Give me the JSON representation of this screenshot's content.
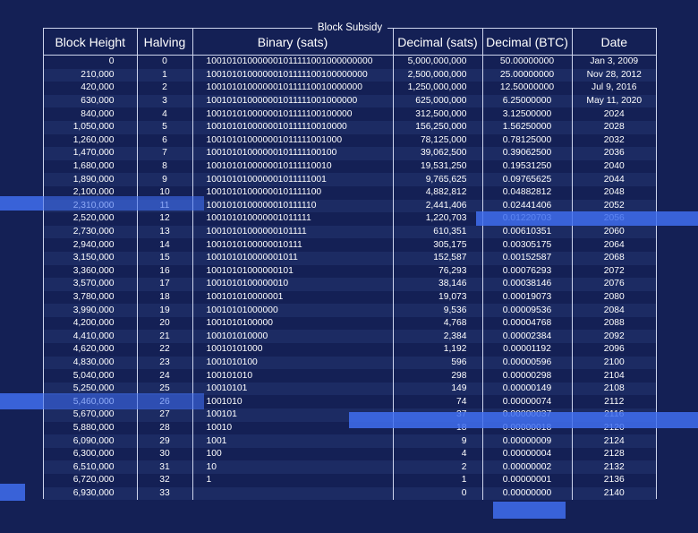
{
  "caption": "Block Subsidy",
  "columns": [
    "Block Height",
    "Halving",
    "Binary (sats)",
    "Decimal (sats)",
    "Decimal (BTC)",
    "Date"
  ],
  "rows": [
    [
      "0",
      "0",
      "100101010000001011111001000000000",
      "5,000,000,000",
      "50.00000000",
      "Jan 3, 2009"
    ],
    [
      "210,000",
      "1",
      "10010101000000101111100100000000",
      "2,500,000,000",
      "25.00000000",
      "Nov 28, 2012"
    ],
    [
      "420,000",
      "2",
      "1001010100000010111110010000000",
      "1,250,000,000",
      "12.50000000",
      "Jul 9, 2016"
    ],
    [
      "630,000",
      "3",
      "100101010000001011111001000000",
      "625,000,000",
      "6.25000000",
      "May 11, 2020"
    ],
    [
      "840,000",
      "4",
      "10010101000000101111100100000",
      "312,500,000",
      "3.12500000",
      "2024"
    ],
    [
      "1,050,000",
      "5",
      "1001010100000010111110010000",
      "156,250,000",
      "1.56250000",
      "2028"
    ],
    [
      "1,260,000",
      "6",
      "100101010000001011111001000",
      "78,125,000",
      "0.78125000",
      "2032"
    ],
    [
      "1,470,000",
      "7",
      "10010101000000101111100100",
      "39,062,500",
      "0.39062500",
      "2036"
    ],
    [
      "1,680,000",
      "8",
      "1001010100000010111110010",
      "19,531,250",
      "0.19531250",
      "2040"
    ],
    [
      "1,890,000",
      "9",
      "100101010000001011111001",
      "9,765,625",
      "0.09765625",
      "2044"
    ],
    [
      "2,100,000",
      "10",
      "10010101000000101111100",
      "4,882,812",
      "0.04882812",
      "2048"
    ],
    [
      "2,310,000",
      "11",
      "1001010100000010111110",
      "2,441,406",
      "0.02441406",
      "2052"
    ],
    [
      "2,520,000",
      "12",
      "100101010000001011111",
      "1,220,703",
      "0.01220703",
      "2056"
    ],
    [
      "2,730,000",
      "13",
      "10010101000000101111",
      "610,351",
      "0.00610351",
      "2060"
    ],
    [
      "2,940,000",
      "14",
      "1001010100000010111",
      "305,175",
      "0.00305175",
      "2064"
    ],
    [
      "3,150,000",
      "15",
      "100101010000001011",
      "152,587",
      "0.00152587",
      "2068"
    ],
    [
      "3,360,000",
      "16",
      "10010101000000101",
      "76,293",
      "0.00076293",
      "2072"
    ],
    [
      "3,570,000",
      "17",
      "1001010100000010",
      "38,146",
      "0.00038146",
      "2076"
    ],
    [
      "3,780,000",
      "18",
      "100101010000001",
      "19,073",
      "0.00019073",
      "2080"
    ],
    [
      "3,990,000",
      "19",
      "10010101000000",
      "9,536",
      "0.00009536",
      "2084"
    ],
    [
      "4,200,000",
      "20",
      "1001010100000",
      "4,768",
      "0.00004768",
      "2088"
    ],
    [
      "4,410,000",
      "21",
      "100101010000",
      "2,384",
      "0.00002384",
      "2092"
    ],
    [
      "4,620,000",
      "22",
      "10010101000",
      "1,192",
      "0.00001192",
      "2096"
    ],
    [
      "4,830,000",
      "23",
      "1001010100",
      "596",
      "0.00000596",
      "2100"
    ],
    [
      "5,040,000",
      "24",
      "100101010",
      "298",
      "0.00000298",
      "2104"
    ],
    [
      "5,250,000",
      "25",
      "10010101",
      "149",
      "0.00000149",
      "2108"
    ],
    [
      "5,460,000",
      "26",
      "1001010",
      "74",
      "0.00000074",
      "2112"
    ],
    [
      "5,670,000",
      "27",
      "100101",
      "37",
      "0.00000037",
      "2116"
    ],
    [
      "5,880,000",
      "28",
      "10010",
      "18",
      "0.00000018",
      "2120"
    ],
    [
      "6,090,000",
      "29",
      "1001",
      "9",
      "0.00000009",
      "2124"
    ],
    [
      "6,300,000",
      "30",
      "100",
      "4",
      "0.00000004",
      "2128"
    ],
    [
      "6,510,000",
      "31",
      "10",
      "2",
      "0.00000002",
      "2132"
    ],
    [
      "6,720,000",
      "32",
      "1",
      "1",
      "0.00000001",
      "2136"
    ],
    [
      "6,930,000",
      "33",
      "",
      "0",
      "0.00000000",
      "2140"
    ]
  ],
  "colors": {
    "background": "#142055",
    "row_alt": "#1c2b63",
    "border": "#cdd4ec",
    "highlight": "#3f6ef0"
  }
}
